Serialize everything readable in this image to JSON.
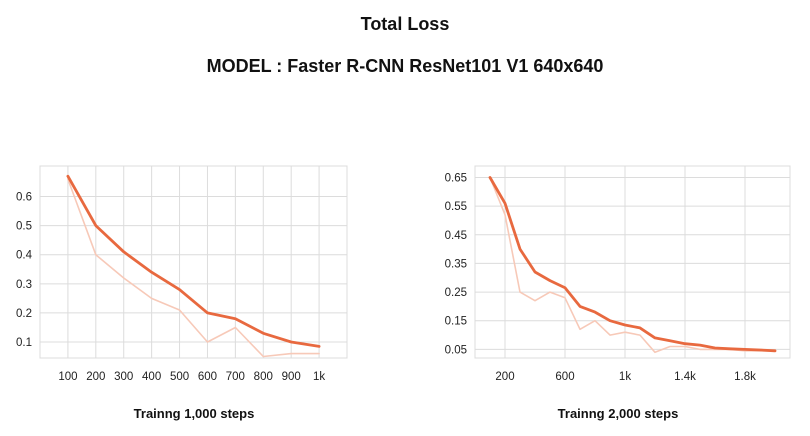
{
  "header": {
    "title": "Total Loss",
    "subtitle": "MODEL : Faster R-CNN ResNet101 V1 640x640"
  },
  "colors": {
    "smoothed": "#e8693f",
    "raw": "#f7c9b8",
    "grid": "#dcdcdc"
  },
  "chart_data": [
    {
      "type": "line",
      "caption": "Trainng 1,000 steps",
      "x_ticks": [
        100,
        200,
        300,
        400,
        500,
        600,
        700,
        800,
        900,
        1000
      ],
      "x_tick_labels": [
        "100",
        "200",
        "300",
        "400",
        "500",
        "600",
        "700",
        "800",
        "900",
        "1k"
      ],
      "y_ticks": [
        0.1,
        0.2,
        0.3,
        0.4,
        0.5,
        0.6
      ],
      "y_tick_labels": [
        "0.1",
        "0.2",
        "0.3",
        "0.4",
        "0.5",
        "0.6"
      ],
      "xlim": [
        0,
        1100
      ],
      "ylim": [
        0.045,
        0.705
      ],
      "grid": true,
      "series": [
        {
          "role": "raw",
          "x": [
            100,
            200,
            300,
            400,
            500,
            600,
            700,
            800,
            900,
            1000
          ],
          "y": [
            0.66,
            0.4,
            0.32,
            0.25,
            0.21,
            0.1,
            0.15,
            0.05,
            0.06,
            0.06
          ]
        },
        {
          "role": "smoothed",
          "x": [
            100,
            200,
            300,
            400,
            500,
            600,
            700,
            800,
            900,
            1000
          ],
          "y": [
            0.67,
            0.5,
            0.41,
            0.34,
            0.28,
            0.2,
            0.18,
            0.13,
            0.1,
            0.085
          ]
        }
      ]
    },
    {
      "type": "line",
      "caption": "Trainng 2,000 steps",
      "x_ticks": [
        200,
        600,
        1000,
        1400,
        1800
      ],
      "x_tick_labels": [
        "200",
        "600",
        "1k",
        "1.4k",
        "1.8k"
      ],
      "y_ticks": [
        0.05,
        0.15,
        0.25,
        0.35,
        0.45,
        0.55,
        0.65
      ],
      "y_tick_labels": [
        "0.05",
        "0.15",
        "0.25",
        "0.35",
        "0.45",
        "0.55",
        "0.65"
      ],
      "xlim": [
        0,
        2100
      ],
      "ylim": [
        0.02,
        0.69
      ],
      "grid": true,
      "series": [
        {
          "role": "raw",
          "x": [
            100,
            200,
            300,
            400,
            500,
            600,
            700,
            800,
            900,
            1000,
            1100,
            1200,
            1300,
            1400,
            1500,
            1600,
            1700,
            1800,
            1900,
            2000
          ],
          "y": [
            0.65,
            0.52,
            0.25,
            0.22,
            0.25,
            0.23,
            0.12,
            0.15,
            0.1,
            0.11,
            0.1,
            0.04,
            0.06,
            0.06,
            0.05,
            0.05,
            0.05,
            0.045,
            0.045,
            0.045
          ]
        },
        {
          "role": "smoothed",
          "x": [
            100,
            200,
            300,
            400,
            500,
            600,
            700,
            800,
            900,
            1000,
            1100,
            1200,
            1300,
            1400,
            1500,
            1600,
            1700,
            1800,
            1900,
            2000
          ],
          "y": [
            0.65,
            0.56,
            0.4,
            0.32,
            0.29,
            0.265,
            0.2,
            0.18,
            0.15,
            0.135,
            0.125,
            0.09,
            0.08,
            0.07,
            0.065,
            0.055,
            0.052,
            0.05,
            0.048,
            0.045
          ]
        }
      ]
    }
  ]
}
